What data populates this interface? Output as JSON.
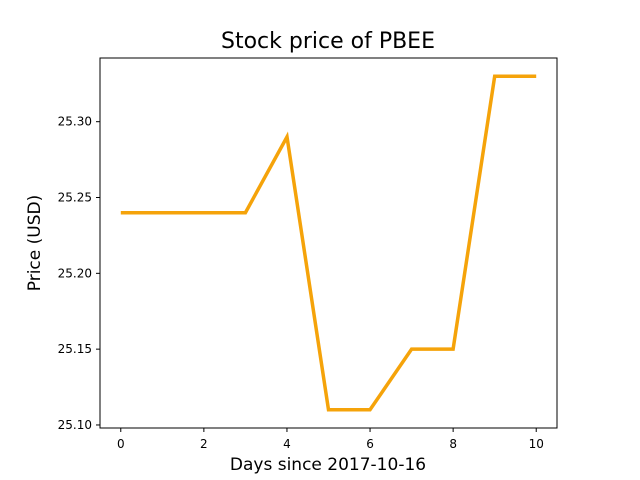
{
  "chart_data": {
    "type": "line",
    "title": "Stock price of PBEE",
    "xlabel": "Days since 2017-10-16",
    "ylabel": "Price (USD)",
    "xlim": [
      -0.5,
      10.5
    ],
    "ylim": [
      25.098,
      25.342
    ],
    "xticks": [
      0,
      2,
      4,
      6,
      8,
      10
    ],
    "xtick_labels": [
      "0",
      "2",
      "4",
      "6",
      "8",
      "10"
    ],
    "yticks": [
      25.1,
      25.15,
      25.2,
      25.25,
      25.3
    ],
    "ytick_labels": [
      "25.10",
      "25.15",
      "25.20",
      "25.25",
      "25.30"
    ],
    "grid": false,
    "series": [
      {
        "color": "#f5a30a",
        "x": [
          0,
          1,
          2,
          3,
          4,
          5,
          6,
          7,
          8,
          9,
          10
        ],
        "y": [
          25.24,
          25.24,
          25.24,
          25.24,
          25.29,
          25.11,
          25.11,
          25.15,
          25.15,
          25.33,
          25.33
        ]
      }
    ]
  }
}
